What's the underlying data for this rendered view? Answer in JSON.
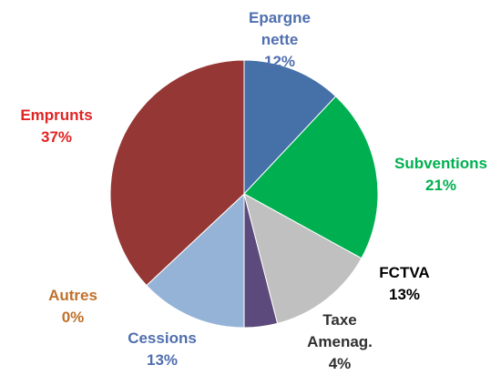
{
  "chart_data": {
    "type": "pie",
    "categories": [
      "Epargne nette",
      "Subventions",
      "FCTVA",
      "Taxe Amenag.",
      "Cessions",
      "Autres",
      "Emprunts"
    ],
    "values": [
      12,
      21,
      13,
      4,
      13,
      0,
      37
    ],
    "value_labels": [
      "12%",
      "21%",
      "13%",
      "4%",
      "13%",
      "0%",
      "37%"
    ],
    "colors": [
      "#4571a8",
      "#00b050",
      "#c0c0c0",
      "#5b4a7b",
      "#95b3d7",
      "#e46c0a",
      "#953735"
    ],
    "label_colors": [
      "#4f6fae",
      "#00b050",
      "#000000",
      "#303030",
      "#4f6fae",
      "#c0702a",
      "#e02424"
    ]
  }
}
